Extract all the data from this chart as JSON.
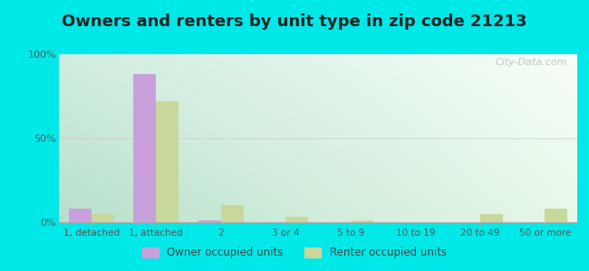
{
  "title": "Owners and renters by unit type in zip code 21213",
  "categories": [
    "1, detached",
    "1, attached",
    "2",
    "3 or 4",
    "5 to 9",
    "10 to 19",
    "20 to 49",
    "50 or more"
  ],
  "owner_values": [
    8,
    88,
    1,
    0,
    0,
    0,
    0,
    0
  ],
  "renter_values": [
    5,
    72,
    10,
    3,
    1,
    0,
    5,
    8
  ],
  "owner_color": "#c9a0dc",
  "renter_color": "#c8d89a",
  "background_color": "#00e8e8",
  "ylim": [
    0,
    100
  ],
  "yticks": [
    0,
    50,
    100
  ],
  "ytick_labels": [
    "0%",
    "50%",
    "100%"
  ],
  "watermark": "City-Data.com",
  "legend_owner": "Owner occupied units",
  "legend_renter": "Renter occupied units",
  "bar_width": 0.35,
  "title_fontsize": 13,
  "gradient_top_left": "#c8e8d8",
  "gradient_bottom_right": "#f0faf0"
}
